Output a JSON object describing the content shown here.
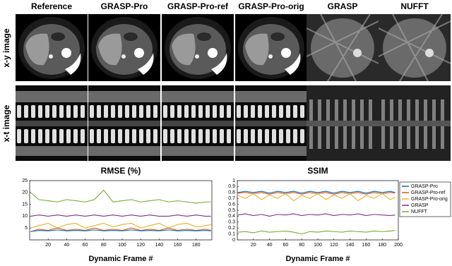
{
  "figure": {
    "columns": [
      "Reference",
      "GRASP-Pro",
      "GRASP-Pro-ref",
      "GRASP-Pro-orig",
      "GRASP",
      "NUFFT"
    ],
    "rows": [
      "x-y image",
      "x-t image"
    ]
  },
  "chart_data": [
    {
      "type": "line",
      "title": "RMSE (%)",
      "x_label": "Dynamic Frame #",
      "x": [
        1,
        10,
        20,
        30,
        40,
        50,
        60,
        70,
        80,
        90,
        100,
        110,
        120,
        130,
        140,
        150,
        160,
        170,
        180,
        190,
        196
      ],
      "xlim": [
        0,
        197
      ],
      "xticks": [
        20,
        40,
        60,
        80,
        100,
        120,
        140,
        160,
        180
      ],
      "ylim": [
        0,
        25
      ],
      "yticks": [
        5,
        10,
        15,
        20,
        25
      ],
      "legend": "none",
      "series": [
        {
          "color": "#77ac30",
          "values": [
            20,
            17,
            16.5,
            16,
            17,
            16.5,
            16,
            17,
            21,
            16,
            16.5,
            17,
            16,
            16.5,
            17,
            16,
            16.5,
            16,
            15.5,
            16,
            16
          ]
        },
        {
          "color": "#7e2f8e",
          "values": [
            10,
            10.5,
            10,
            10.5,
            10,
            10.5,
            10,
            10.5,
            10,
            10.5,
            10,
            10.5,
            10,
            10.5,
            10,
            10,
            10.5,
            10,
            10.5,
            10,
            10
          ]
        },
        {
          "color": "#edb120",
          "values": [
            5,
            6,
            7,
            5,
            6.5,
            7,
            5,
            6,
            7,
            5.5,
            6.5,
            7,
            5,
            6,
            7,
            5,
            6.5,
            7,
            5.5,
            6,
            6.5
          ]
        },
        {
          "color": "#d95319",
          "values": [
            3.5,
            4.5,
            4,
            5,
            4,
            4.5,
            4,
            5,
            4,
            4.5,
            4,
            5,
            4,
            4.5,
            4,
            5,
            4,
            4.5,
            4,
            4.5,
            4
          ]
        },
        {
          "color": "#0072bd",
          "values": [
            3.5,
            4,
            3.8,
            4.2,
            3.8,
            4,
            3.8,
            4.2,
            3.8,
            4,
            3.8,
            4.2,
            3.8,
            4,
            3.8,
            4.2,
            3.8,
            4,
            3.8,
            4,
            3.8
          ]
        }
      ]
    },
    {
      "type": "line",
      "title": "SSIM",
      "x_label": "Dynamic Frame #",
      "x": [
        1,
        10,
        20,
        30,
        40,
        50,
        60,
        70,
        80,
        90,
        100,
        110,
        120,
        130,
        140,
        150,
        160,
        170,
        180,
        190,
        196
      ],
      "xlim": [
        0,
        200
      ],
      "xticks": [
        20,
        40,
        60,
        80,
        100,
        120,
        140,
        160,
        180,
        200
      ],
      "ylim": [
        0,
        1
      ],
      "yticks": [
        0,
        0.1,
        0.2,
        0.3,
        0.4,
        0.5,
        0.6,
        0.7,
        0.8,
        0.9,
        1
      ],
      "legend": "outside-right",
      "series": [
        {
          "name": "GRASP-Pro",
          "color": "#0072bd",
          "values": [
            0.8,
            0.82,
            0.8,
            0.82,
            0.79,
            0.82,
            0.8,
            0.82,
            0.79,
            0.82,
            0.8,
            0.82,
            0.79,
            0.82,
            0.8,
            0.82,
            0.79,
            0.82,
            0.8,
            0.82,
            0.8
          ]
        },
        {
          "name": "GRASP-Pro-ref",
          "color": "#d95319",
          "values": [
            0.79,
            0.8,
            0.78,
            0.8,
            0.77,
            0.8,
            0.78,
            0.8,
            0.77,
            0.8,
            0.78,
            0.8,
            0.77,
            0.8,
            0.78,
            0.8,
            0.77,
            0.8,
            0.78,
            0.8,
            0.79
          ]
        },
        {
          "name": "GRASP-Pro-orig",
          "color": "#edb120",
          "values": [
            0.75,
            0.7,
            0.78,
            0.68,
            0.76,
            0.7,
            0.78,
            0.66,
            0.75,
            0.7,
            0.78,
            0.68,
            0.76,
            0.7,
            0.78,
            0.66,
            0.75,
            0.7,
            0.78,
            0.68,
            0.72
          ]
        },
        {
          "name": "GRASP",
          "color": "#7e2f8e",
          "values": [
            0.42,
            0.44,
            0.41,
            0.43,
            0.4,
            0.43,
            0.42,
            0.44,
            0.41,
            0.43,
            0.42,
            0.44,
            0.41,
            0.43,
            0.42,
            0.44,
            0.41,
            0.43,
            0.42,
            0.41,
            0.42
          ]
        },
        {
          "name": "NUFFT",
          "color": "#77ac30",
          "values": [
            0.13,
            0.14,
            0.12,
            0.15,
            0.13,
            0.14,
            0.15,
            0.13,
            0.1,
            0.14,
            0.13,
            0.15,
            0.14,
            0.13,
            0.15,
            0.14,
            0.13,
            0.15,
            0.14,
            0.15,
            0.16
          ]
        }
      ]
    }
  ]
}
